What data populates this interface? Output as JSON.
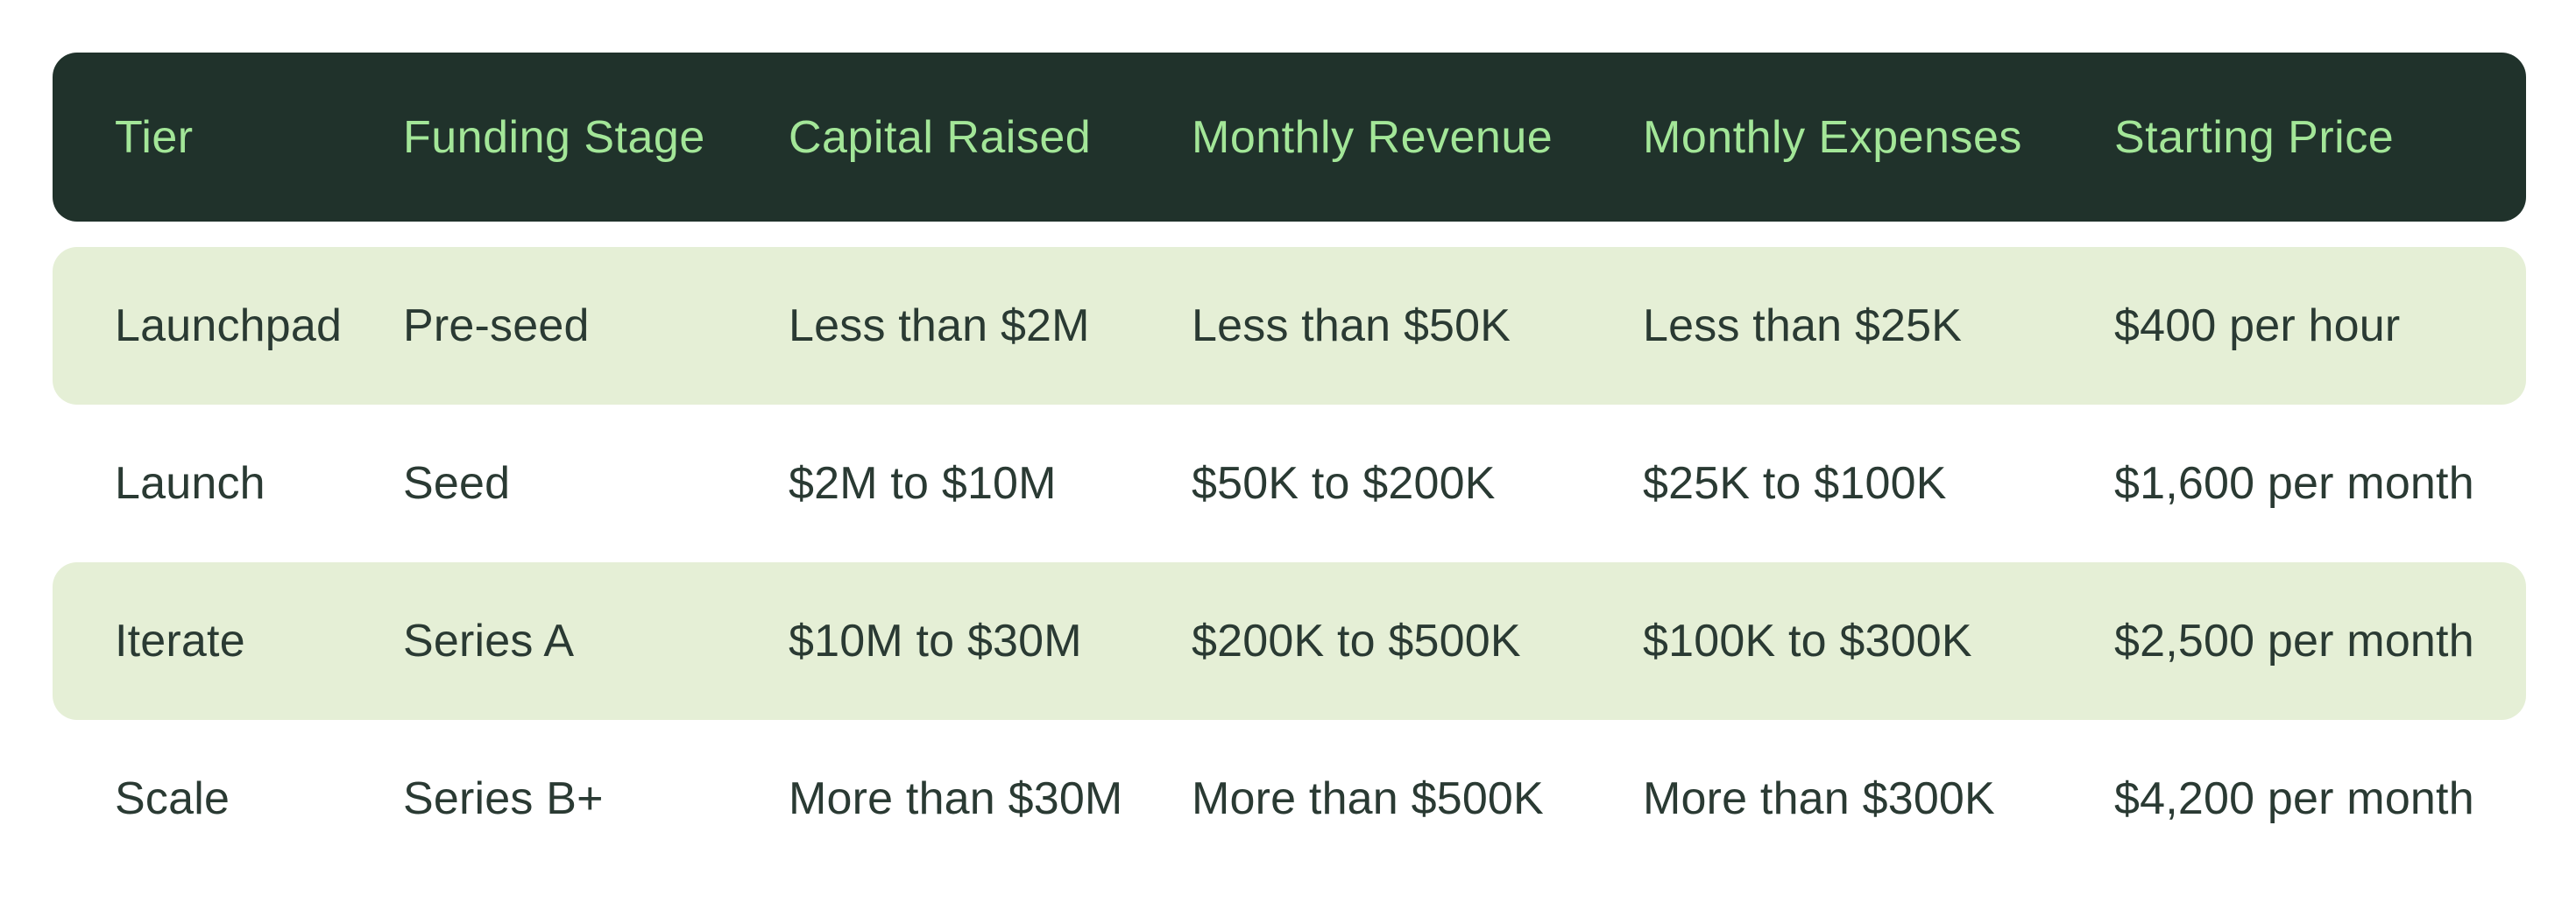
{
  "chart_data": {
    "type": "table",
    "columns": [
      "Tier",
      "Funding Stage",
      "Capital Raised",
      "Monthly Revenue",
      "Monthly Expenses",
      "Starting Price"
    ],
    "rows": [
      [
        "Launchpad",
        "Pre-seed",
        "Less than $2M",
        "Less than $50K",
        "Less than $25K",
        "$400 per hour"
      ],
      [
        "Launch",
        "Seed",
        "$2M to $10M",
        "$50K to $200K",
        "$25K to $100K",
        "$1,600 per month"
      ],
      [
        "Iterate",
        "Series A",
        "$10M to $30M",
        "$200K to $500K",
        "$100K to $300K",
        "$2,500 per month"
      ],
      [
        "Scale",
        "Series B+",
        "More than $30M",
        "More than $500K",
        "More than $300K",
        "$4,200 per month"
      ]
    ],
    "layout_hints": {
      "striped": "rows 1 and 3 highlighted light green, rows 2 and 4 white",
      "header_style": "dark green pill with light green text",
      "legend_position": "none",
      "grid": false
    }
  },
  "colors": {
    "header_bg": "#20322b",
    "header_text": "#a3e698",
    "row_alt_bg": "#e5efd6",
    "body_text": "#2a3a33",
    "page_bg": "#ffffff"
  }
}
